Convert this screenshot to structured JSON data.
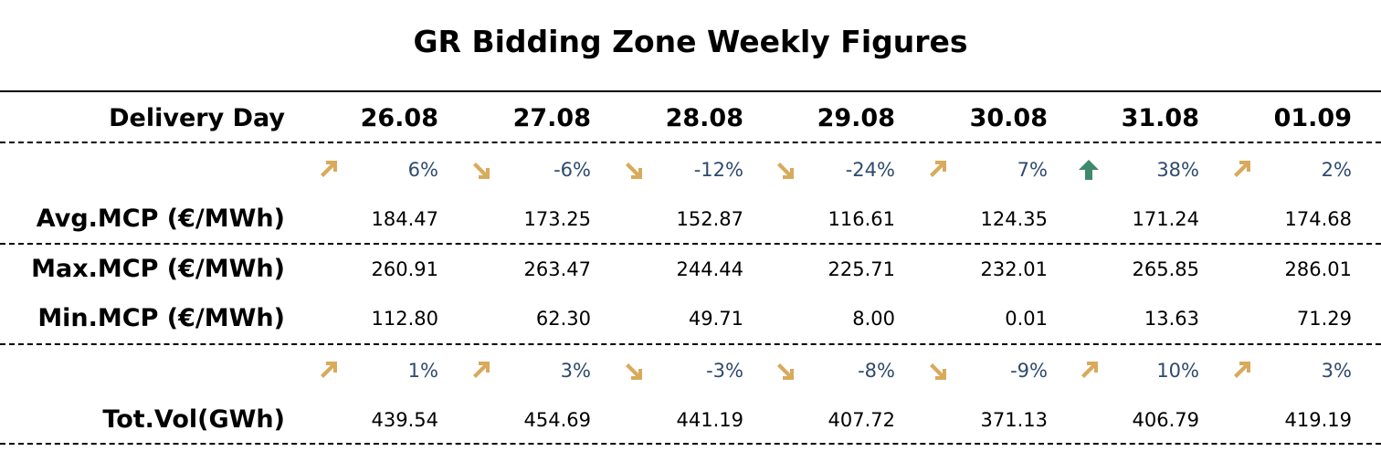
{
  "title": "GR Bidding Zone Weekly Figures",
  "colors": {
    "arrow_gold": "#d8aa5c",
    "arrow_green": "#3e8a6a",
    "pct_text": "#2e4a6e"
  },
  "header": {
    "label": "Delivery Day",
    "days": [
      "26.08",
      "27.08",
      "28.08",
      "29.08",
      "30.08",
      "31.08",
      "01.09"
    ]
  },
  "avg_change": {
    "pct": [
      "6%",
      "-6%",
      "-12%",
      "-24%",
      "7%",
      "38%",
      "2%"
    ],
    "icons": [
      "arrow-up-right-icon",
      "arrow-down-right-icon",
      "arrow-down-right-icon",
      "arrow-down-right-icon",
      "arrow-up-right-icon",
      "arrow-up-icon",
      "arrow-up-right-icon"
    ]
  },
  "avg": {
    "label": "Avg.MCP (€/MWh)",
    "values": [
      "184.47",
      "173.25",
      "152.87",
      "116.61",
      "124.35",
      "171.24",
      "174.68"
    ]
  },
  "max": {
    "label": "Max.MCP (€/MWh)",
    "values": [
      "260.91",
      "263.47",
      "244.44",
      "225.71",
      "232.01",
      "265.85",
      "286.01"
    ]
  },
  "min": {
    "label": "Min.MCP (€/MWh)",
    "values": [
      "112.80",
      "62.30",
      "49.71",
      "8.00",
      "0.01",
      "13.63",
      "71.29"
    ]
  },
  "vol_change": {
    "pct": [
      "1%",
      "3%",
      "-3%",
      "-8%",
      "-9%",
      "10%",
      "3%"
    ],
    "icons": [
      "arrow-up-right-icon",
      "arrow-up-right-icon",
      "arrow-down-right-icon",
      "arrow-down-right-icon",
      "arrow-down-right-icon",
      "arrow-up-right-icon",
      "arrow-up-right-icon"
    ]
  },
  "vol": {
    "label": "Tot.Vol(GWh)",
    "values": [
      "439.54",
      "454.69",
      "441.19",
      "407.72",
      "371.13",
      "406.79",
      "419.19"
    ]
  }
}
